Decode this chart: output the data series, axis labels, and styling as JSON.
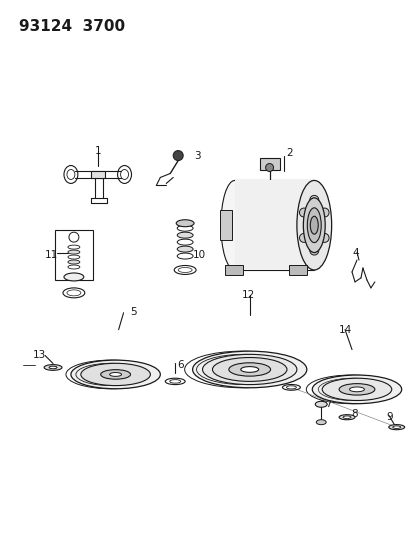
{
  "title": "93124  3700",
  "bg_color": "#ffffff",
  "line_color": "#1a1a1a",
  "fig_width": 4.14,
  "fig_height": 5.33,
  "dpi": 100
}
